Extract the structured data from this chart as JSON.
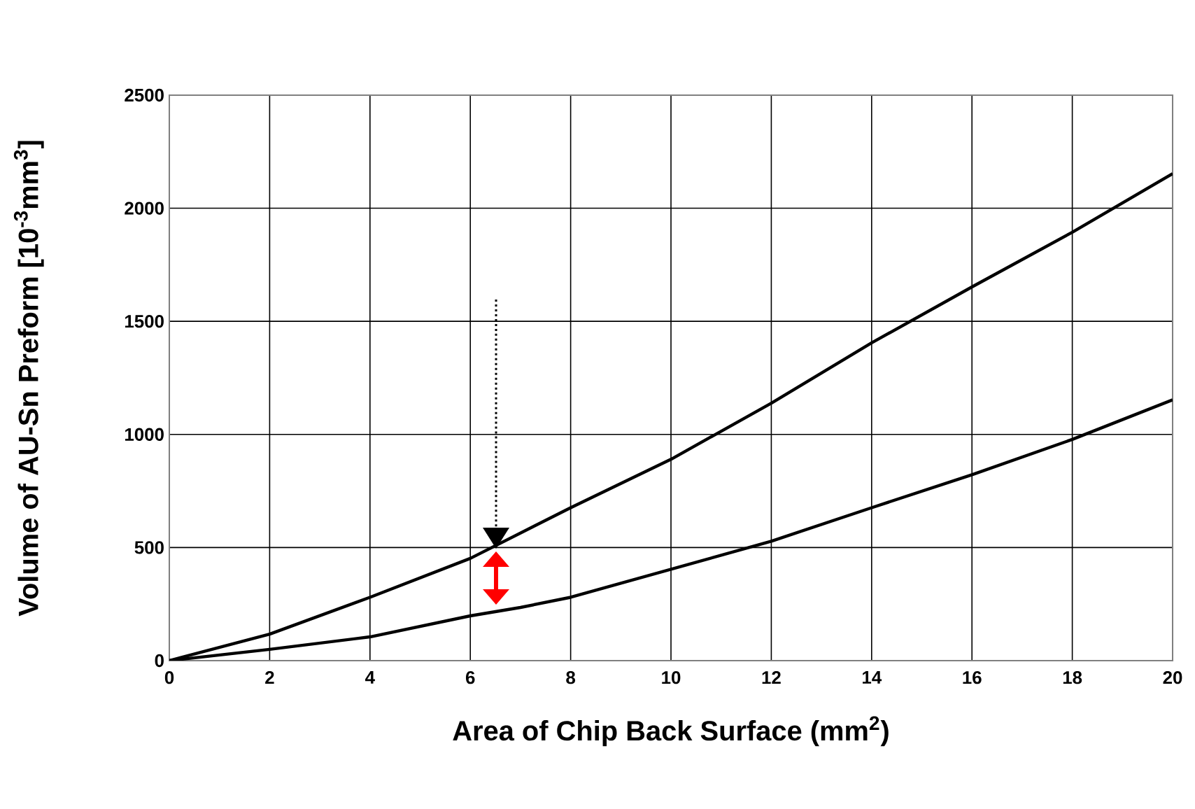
{
  "chart_data": {
    "type": "line",
    "xlabel": "Area of Chip Back Surface (mm$^{2}$)",
    "ylabel": "Volume of AU-Sn Preform [10$^{-3}$mm$^{3}$]",
    "xlim": [
      0,
      20
    ],
    "ylim": [
      0,
      2500
    ],
    "xticks": [
      0,
      2,
      4,
      6,
      8,
      10,
      12,
      14,
      16,
      18,
      20
    ],
    "yticks": [
      0,
      500,
      1000,
      1500,
      2000,
      2500
    ],
    "grid": true,
    "marker": "none",
    "line_style": "solid",
    "series": [
      {
        "color": "#000000",
        "x": [
          0,
          2,
          4,
          6,
          8,
          10,
          12,
          14,
          16,
          18,
          20
        ],
        "values": [
          0,
          117,
          280,
          452,
          676,
          890,
          1138,
          1405,
          1652,
          1894,
          2153
        ]
      },
      {
        "color": "#000000",
        "x": [
          0,
          2,
          4,
          6,
          7,
          8,
          10,
          12,
          14,
          16,
          18,
          20
        ],
        "values": [
          0,
          50,
          105,
          198,
          235,
          280,
          404,
          528,
          676,
          822,
          978,
          1153
        ]
      }
    ]
  }
}
